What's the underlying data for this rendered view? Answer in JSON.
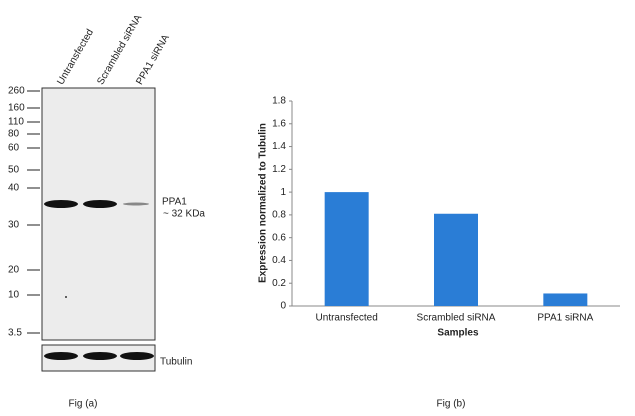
{
  "blot": {
    "lanes": [
      "Untransfected",
      "Scrambled siRNA",
      "PPA1 siRNA"
    ],
    "markers": [
      "260",
      "160",
      "110",
      "80",
      "60",
      "50",
      "40",
      "30",
      "20",
      "10",
      "3.5"
    ],
    "band_label": "PPA1",
    "band_size": "~ 32 KDa",
    "loading_control": "Tubulin",
    "caption": "Fig (a)"
  },
  "chart_data": {
    "type": "bar",
    "caption": "Fig (b)",
    "x_label": "Samples",
    "y_label": "Expression  normalized to Tubulin",
    "categories": [
      "Untransfected",
      "Scrambled siRNA",
      "PPA1 siRNA"
    ],
    "values": [
      1.0,
      0.81,
      0.11
    ],
    "color": "#2a7dd6",
    "ylim": [
      0,
      1.8
    ],
    "yticks": [
      0,
      0.2,
      0.4,
      0.6,
      0.8,
      1,
      1.2,
      1.4,
      1.6,
      1.8
    ],
    "grid": false
  }
}
